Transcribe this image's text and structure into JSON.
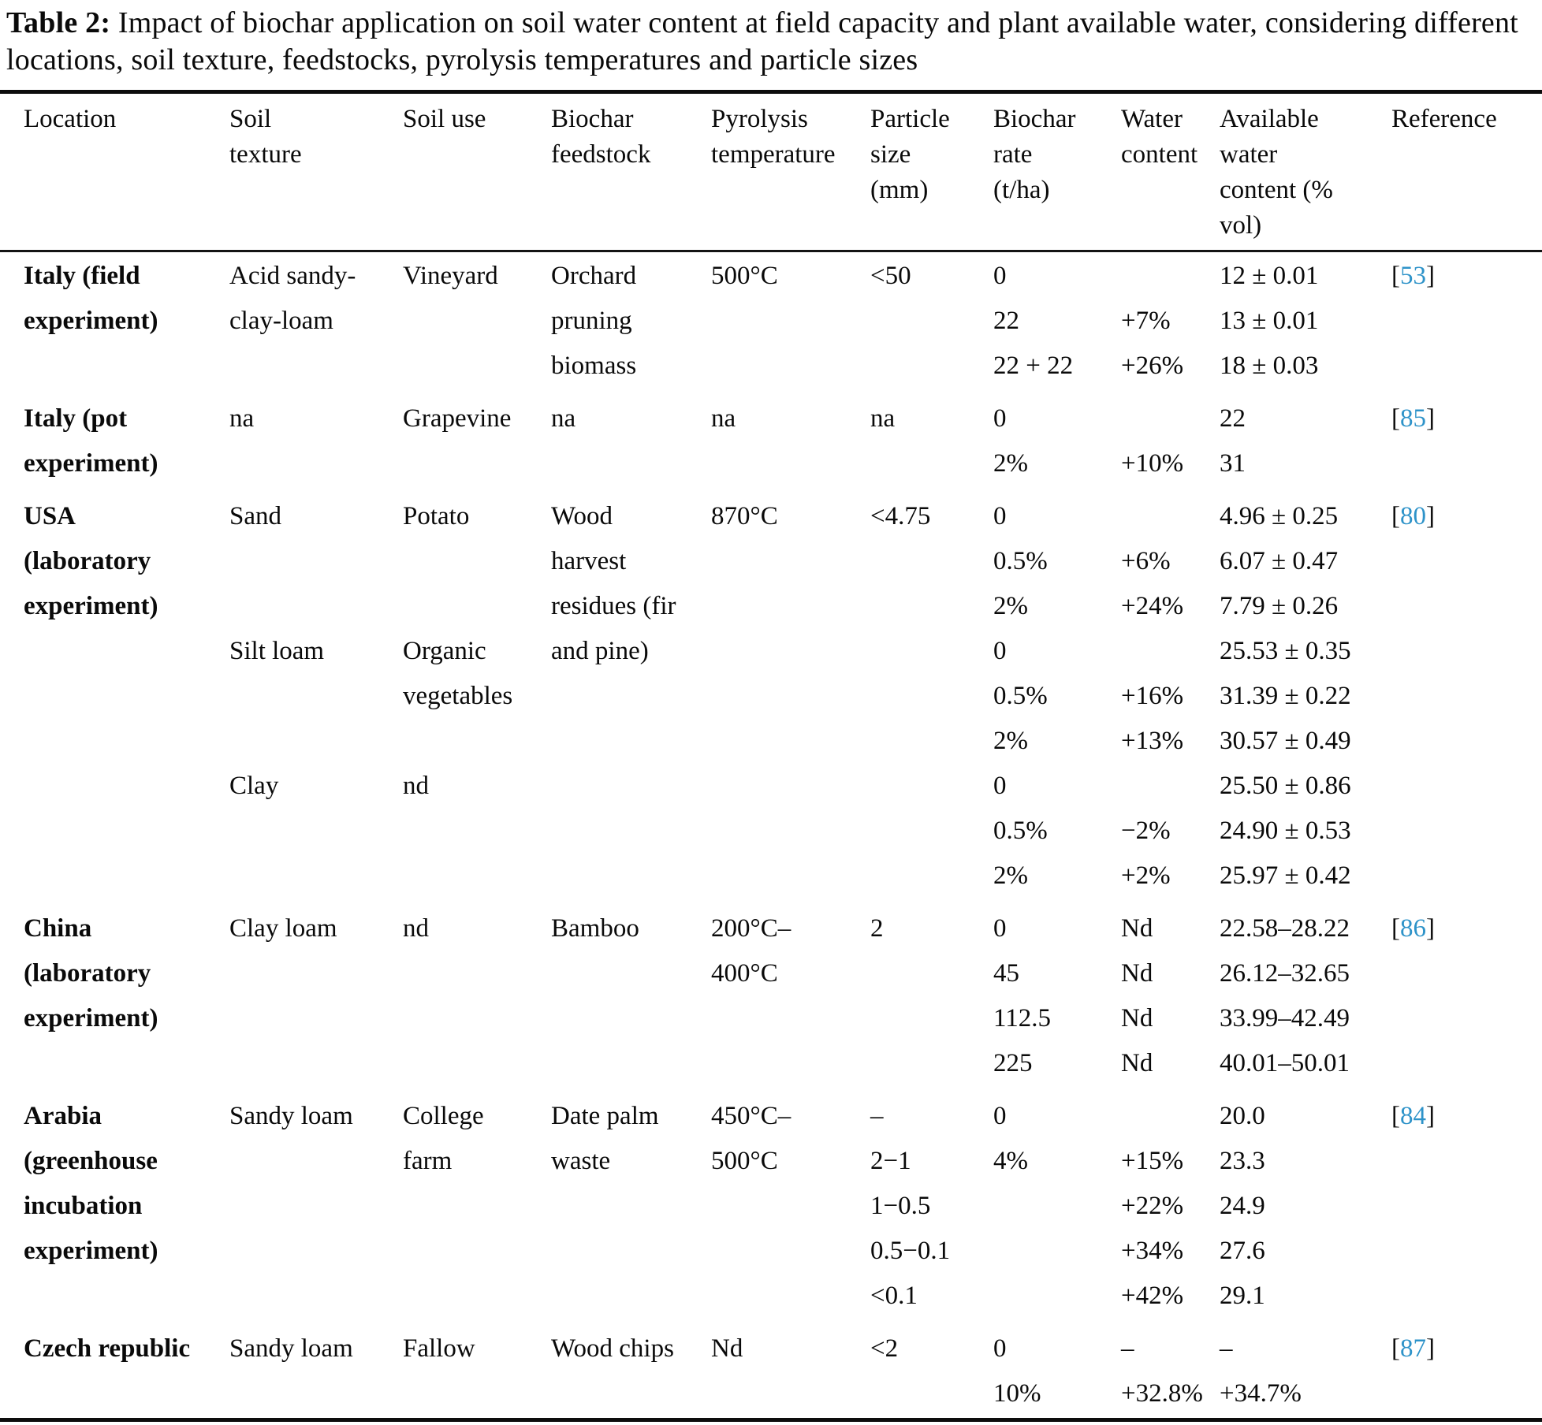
{
  "title": {
    "label": "Table 2:",
    "text": " Impact of biochar application on soil water content at field capacity and plant available water, considering different locations, soil texture, feedstocks, pyrolysis temperatures and particle sizes"
  },
  "colors": {
    "reference_link": "#2E93C9",
    "text": "#0a0a0a",
    "rule": "#0d0d0d"
  },
  "table": {
    "citation_brackets": [
      "[",
      "]"
    ],
    "columns": [
      [
        "Location"
      ],
      [
        "Soil",
        "texture"
      ],
      [
        "Soil use"
      ],
      [
        "Biochar",
        "feedstock"
      ],
      [
        "Pyrolysis",
        "temperature"
      ],
      [
        "Particle",
        "size",
        "(mm)"
      ],
      [
        "Biochar",
        "rate",
        "(t/ha)"
      ],
      [
        "Water",
        "content"
      ],
      [
        "Available",
        "water",
        "content (%",
        "vol)"
      ],
      [
        "Reference"
      ]
    ],
    "column_keys": [
      "location",
      "soil-texture",
      "soil-use",
      "biochar-feedstock",
      "pyrolysis-temperature",
      "particle-size",
      "biochar-rate",
      "water-content",
      "available-water-content",
      "reference"
    ],
    "sections": [
      {
        "rows": [
          [
            "Italy (field\nexperiment)",
            "Acid sandy-\nclay-loam",
            "Vineyard",
            "Orchard\npruning\nbiomass",
            "500°C",
            "<50",
            "0",
            "",
            "12 ± 0.01",
            "53"
          ],
          [
            "",
            "",
            "",
            "",
            "",
            "",
            "22",
            "+7%",
            "13 ± 0.01",
            ""
          ],
          [
            "",
            "",
            "",
            "",
            "",
            "",
            "22 + 22",
            "+26%",
            "18 ± 0.03",
            ""
          ]
        ]
      },
      {
        "rows": [
          [
            "Italy (pot\nexperiment)",
            "na",
            "Grapevine",
            "na",
            "na",
            "na",
            "0",
            "",
            "22",
            "85"
          ],
          [
            "",
            "",
            "",
            "",
            "",
            "",
            "2%",
            "+10%",
            "31",
            ""
          ]
        ]
      },
      {
        "rows": [
          [
            "USA\n(laboratory\nexperiment)",
            "Sand",
            "Potato",
            "Wood\nharvest\nresidues (fir\nand pine)",
            "870°C",
            "<4.75",
            "0",
            "",
            "4.96 ± 0.25",
            "80"
          ],
          [
            "",
            "",
            "",
            "",
            "",
            "",
            "0.5%",
            "+6%",
            "6.07 ± 0.47",
            ""
          ],
          [
            "",
            "",
            "",
            "",
            "",
            "",
            "2%",
            "+24%",
            "7.79 ± 0.26",
            ""
          ],
          [
            "",
            "Silt loam",
            "Organic\nvegetables",
            "",
            "",
            "",
            "0",
            "",
            "25.53 ± 0.35",
            ""
          ],
          [
            "",
            "",
            "",
            "",
            "",
            "",
            "0.5%",
            "+16%",
            "31.39 ± 0.22",
            ""
          ],
          [
            "",
            "",
            "",
            "",
            "",
            "",
            "2%",
            "+13%",
            "30.57 ± 0.49",
            ""
          ],
          [
            "",
            "Clay",
            "nd",
            "",
            "",
            "",
            "0",
            "",
            "25.50 ± 0.86",
            ""
          ],
          [
            "",
            "",
            "",
            "",
            "",
            "",
            "0.5%",
            "−2%",
            "24.90 ± 0.53",
            ""
          ],
          [
            "",
            "",
            "",
            "",
            "",
            "",
            "2%",
            "+2%",
            "25.97 ± 0.42",
            ""
          ]
        ]
      },
      {
        "rows": [
          [
            "China\n(laboratory\nexperiment)",
            "Clay loam",
            "nd",
            "Bamboo",
            "200°C–\n400°C",
            "2",
            "0",
            "Nd",
            "22.58–28.22",
            "86"
          ],
          [
            "",
            "",
            "",
            "",
            "",
            "",
            "45",
            "Nd",
            "26.12–32.65",
            ""
          ],
          [
            "",
            "",
            "",
            "",
            "",
            "",
            "112.5",
            "Nd",
            "33.99–42.49",
            ""
          ],
          [
            "",
            "",
            "",
            "",
            "",
            "",
            "225",
            "Nd",
            "40.01–50.01",
            ""
          ]
        ]
      },
      {
        "rows": [
          [
            "Arabia\n(greenhouse\nincubation\nexperiment)",
            "Sandy loam",
            "College\nfarm",
            "Date palm\nwaste",
            "450°C–\n500°C",
            "–",
            "0",
            "",
            "20.0",
            "84"
          ],
          [
            "",
            "",
            "",
            "",
            "",
            "2−1",
            "4%",
            "+15%",
            "23.3",
            ""
          ],
          [
            "",
            "",
            "",
            "",
            "",
            "1−0.5",
            "",
            "+22%",
            "24.9",
            ""
          ],
          [
            "",
            "",
            "",
            "",
            "",
            "0.5−0.1",
            "",
            "+34%",
            "27.6",
            ""
          ],
          [
            "",
            "",
            "",
            "",
            "",
            "<0.1",
            "",
            "+42%",
            "29.1",
            ""
          ]
        ]
      },
      {
        "rows": [
          [
            "Czech republic",
            "Sandy loam",
            "Fallow",
            "Wood chips",
            "Nd",
            "<2",
            "0",
            "–",
            "–",
            "87"
          ],
          [
            "",
            "",
            "",
            "",
            "",
            "",
            "10%",
            "+32.8%",
            "+34.7%",
            ""
          ]
        ]
      }
    ]
  }
}
